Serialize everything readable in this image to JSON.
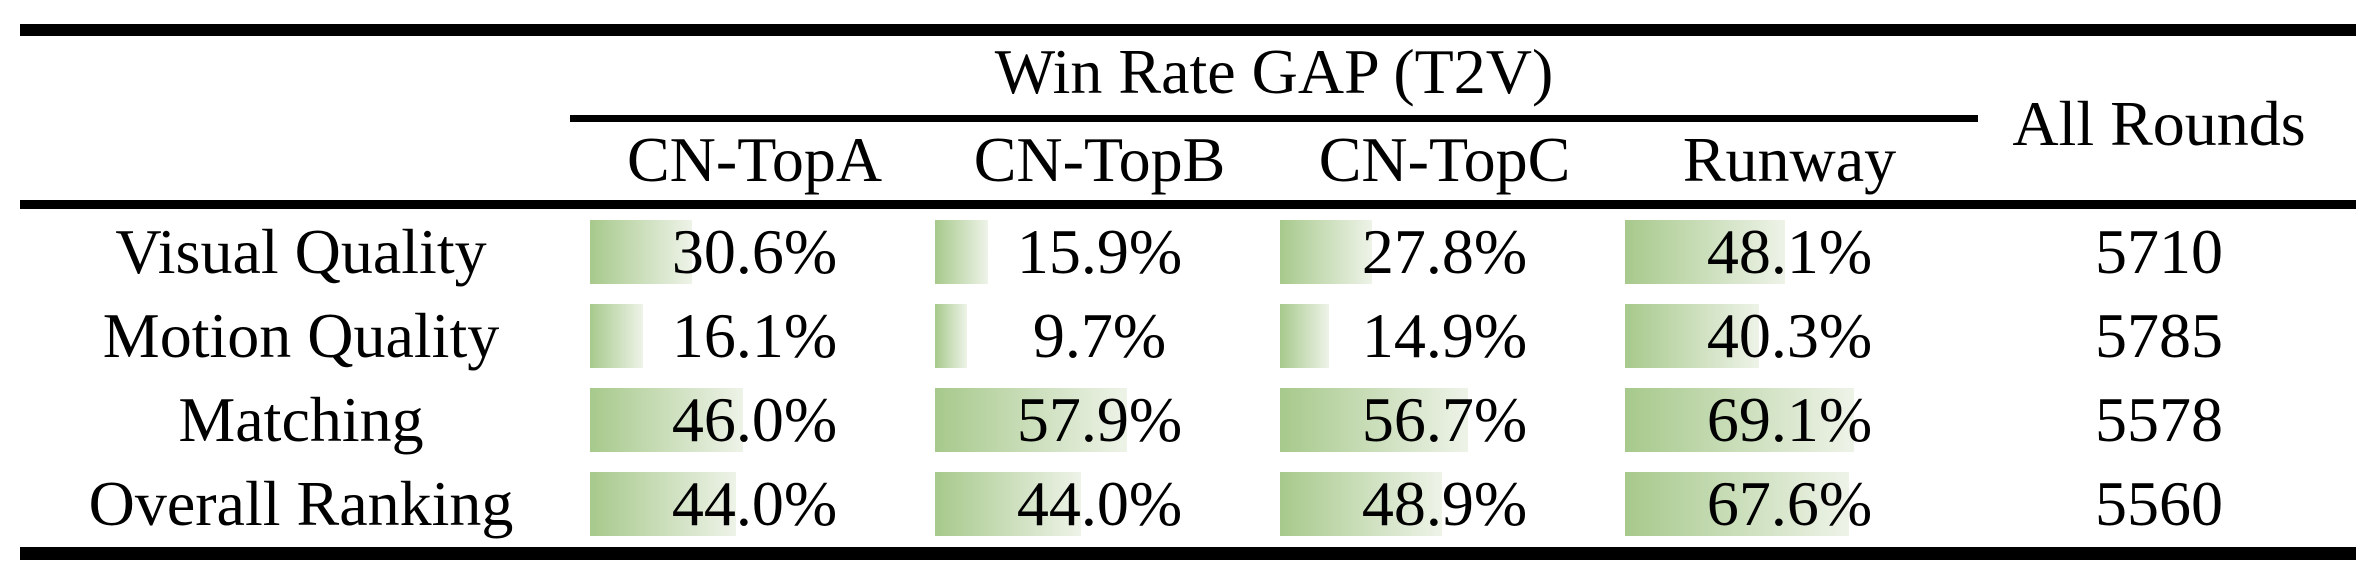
{
  "table": {
    "title": "Win Rate GAP (T2V)",
    "all_rounds_label": "All Rounds",
    "columns": [
      "CN-TopA",
      "CN-TopB",
      "CN-TopC",
      "Runway"
    ],
    "bar_color_start": "#a7c98c",
    "bar_color_end": "#eef3e8",
    "rows": [
      {
        "label": "Visual Quality",
        "values": [
          30.6,
          15.9,
          27.8,
          48.1
        ],
        "value_labels": [
          "30.6%",
          "15.9%",
          "27.8%",
          "48.1%"
        ],
        "rounds": "5710"
      },
      {
        "label": "Motion Quality",
        "values": [
          16.1,
          9.7,
          14.9,
          40.3
        ],
        "value_labels": [
          "16.1%",
          "9.7%",
          "14.9%",
          "40.3%"
        ],
        "rounds": "5785"
      },
      {
        "label": "Matching",
        "values": [
          46.0,
          57.9,
          56.7,
          69.1
        ],
        "value_labels": [
          "46.0%",
          "57.9%",
          "56.7%",
          "69.1%"
        ],
        "rounds": "5578"
      },
      {
        "label": "Overall Ranking",
        "values": [
          44.0,
          44.0,
          48.9,
          67.6
        ],
        "value_labels": [
          "44.0%",
          "44.0%",
          "48.9%",
          "67.6%"
        ],
        "rounds": "5560"
      }
    ]
  },
  "chart_data": {
    "type": "table",
    "title": "Win Rate GAP (T2V)",
    "columns": [
      "CN-TopA",
      "CN-TopB",
      "CN-TopC",
      "Runway",
      "All Rounds"
    ],
    "rows": [
      [
        "Visual Quality",
        30.6,
        15.9,
        27.8,
        48.1,
        5710
      ],
      [
        "Motion Quality",
        16.1,
        9.7,
        14.9,
        40.3,
        5785
      ],
      [
        "Matching",
        46.0,
        57.9,
        56.7,
        69.1,
        5578
      ],
      [
        "Overall Ranking",
        44.0,
        44.0,
        48.9,
        67.6,
        5560
      ]
    ],
    "notes": "Percent cells have green data bars proportional to value; bars fade from green (left) to near-white (right)."
  }
}
